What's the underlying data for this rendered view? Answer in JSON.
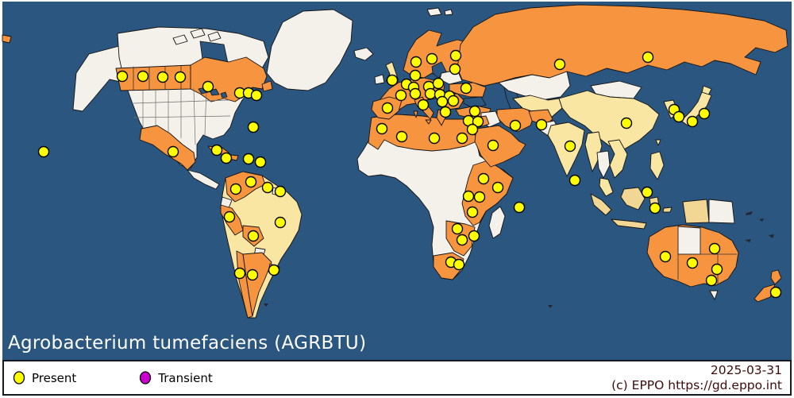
{
  "title": {
    "text": "Agrobacterium tumefaciens (AGRBTU)"
  },
  "legend": {
    "items": [
      {
        "label": "Present",
        "color": "#ffff00"
      },
      {
        "label": "Transient",
        "color": "#cc00cc"
      }
    ]
  },
  "footer": {
    "date": "2025-03-31",
    "attribution": "(c) EPPO https://gd.eppo.int"
  },
  "colors": {
    "ocean": "#2b5680",
    "land_no_record": "#f4f1ea",
    "present_country_fill": "#f79440",
    "present_partial_fill": "#f8e6a2",
    "marker_fill": "#ffff00",
    "marker_stroke": "#000000",
    "transient_fill": "#cc00cc",
    "country_border": "#141414",
    "footer_text": "#3d0c0c",
    "title_text": "#ffffff"
  },
  "map": {
    "marker_radius": 6.5,
    "marker_meaning": "Present",
    "markers": [
      [
        55,
        191
      ],
      [
        154,
        96
      ],
      [
        180,
        96
      ],
      [
        205,
        97
      ],
      [
        227,
        97
      ],
      [
        262,
        109
      ],
      [
        302,
        117
      ],
      [
        313,
        117
      ],
      [
        323,
        120
      ],
      [
        319,
        160
      ],
      [
        218,
        191
      ],
      [
        273,
        189
      ],
      [
        285,
        199
      ],
      [
        313,
        200
      ],
      [
        328,
        204
      ],
      [
        297,
        238
      ],
      [
        316,
        229
      ],
      [
        337,
        236
      ],
      [
        353,
        241
      ],
      [
        289,
        273
      ],
      [
        353,
        280
      ],
      [
        319,
        297
      ],
      [
        302,
        344
      ],
      [
        318,
        346
      ],
      [
        345,
        340
      ],
      [
        524,
        78
      ],
      [
        544,
        74
      ],
      [
        574,
        70
      ],
      [
        573,
        87
      ],
      [
        523,
        95
      ],
      [
        494,
        101
      ],
      [
        512,
        106
      ],
      [
        521,
        110
      ],
      [
        540,
        109
      ],
      [
        552,
        105
      ],
      [
        587,
        111
      ],
      [
        505,
        120
      ],
      [
        523,
        118
      ],
      [
        542,
        118
      ],
      [
        554,
        119
      ],
      [
        566,
        121
      ],
      [
        557,
        128
      ],
      [
        571,
        127
      ],
      [
        533,
        132
      ],
      [
        488,
        136
      ],
      [
        561,
        141
      ],
      [
        598,
        140
      ],
      [
        590,
        152
      ],
      [
        602,
        153
      ],
      [
        595,
        163
      ],
      [
        481,
        162
      ],
      [
        506,
        172
      ],
      [
        547,
        174
      ],
      [
        582,
        174
      ],
      [
        621,
        183
      ],
      [
        649,
        158
      ],
      [
        682,
        157
      ],
      [
        609,
        225
      ],
      [
        627,
        236
      ],
      [
        590,
        247
      ],
      [
        604,
        248
      ],
      [
        595,
        267
      ],
      [
        654,
        261
      ],
      [
        576,
        288
      ],
      [
        582,
        302
      ],
      [
        597,
        297
      ],
      [
        568,
        330
      ],
      [
        578,
        333
      ],
      [
        705,
        81
      ],
      [
        816,
        72
      ],
      [
        789,
        155
      ],
      [
        718,
        184
      ],
      [
        849,
        138
      ],
      [
        855,
        147
      ],
      [
        887,
        143
      ],
      [
        872,
        153
      ],
      [
        724,
        227
      ],
      [
        815,
        242
      ],
      [
        825,
        262
      ],
      [
        838,
        323
      ],
      [
        900,
        313
      ],
      [
        872,
        331
      ],
      [
        903,
        339
      ],
      [
        896,
        353
      ],
      [
        977,
        368
      ]
    ],
    "region_shading_observed": {
      "orange": [
        "southern Canada provinces",
        "Mexico",
        "Cuba",
        "Colombia",
        "Venezuela",
        "Peru",
        "Bolivia",
        "Chile",
        "Argentina",
        "Uruguay",
        "Spain",
        "Portugal",
        "France",
        "Germany",
        "Poland",
        "Scandinavia",
        "Italy",
        "Balkans",
        "Greece",
        "Ukraine",
        "Russia",
        "Turkey",
        "Syria",
        "Israel",
        "Iran",
        "Afghanistan",
        "Saudi Arabia",
        "Morocco",
        "Algeria",
        "Tunisia",
        "Libya",
        "Egypt",
        "Ethiopia",
        "Somalia",
        "Kenya",
        "Uganda",
        "Tanzania",
        "Zambia",
        "Mozambique",
        "Zimbabwe",
        "South Africa",
        "Australia (except NT)",
        "New Zealand"
      ],
      "pale_yellow": [
        "United Kingdom",
        "Brazil",
        "Guyana",
        "Central Asia",
        "China",
        "India",
        "Sri Lanka",
        "Korea",
        "Japan",
        "Myanmar",
        "Vietnam",
        "Malaysia",
        "Indonesia",
        "Philippines"
      ],
      "white_no_record": [
        "USA",
        "Alaska",
        "Greenland",
        "Iceland",
        "Ireland",
        "Baltic states",
        "Kazakhstan",
        "Mongolia",
        "Iraq",
        "Pakistan",
        "Thailand",
        "West and Central Africa",
        "Madagascar",
        "Ecuador",
        "Paraguay",
        "Papua New Guinea",
        "Northern Territory (AU)",
        "Tasmania"
      ]
    }
  }
}
